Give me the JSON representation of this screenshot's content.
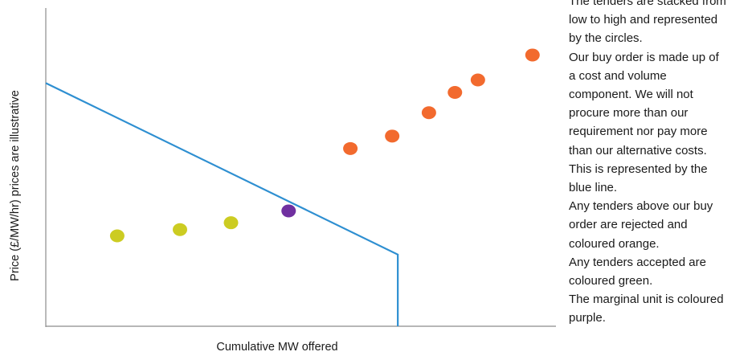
{
  "chart_data": {
    "type": "scatter",
    "title": "",
    "xlabel": "Cumulative MW offered",
    "ylabel": "Price (£/MW/hr) prices are illustrative",
    "xlim": [
      0,
      100
    ],
    "ylim": [
      0,
      100
    ],
    "grid": false,
    "legend": "none",
    "buy_order_line": {
      "color": "#2e8fd1",
      "points": [
        [
          0,
          78
        ],
        [
          69,
          23
        ],
        [
          69,
          0
        ]
      ]
    },
    "series": [
      {
        "color": "#cccc22",
        "category": "accepted",
        "points": [
          [
            14,
            29
          ],
          [
            26.3,
            31
          ],
          [
            36.3,
            33.2
          ]
        ]
      },
      {
        "color": "#7030a0",
        "category": "marginal",
        "points": [
          [
            47.6,
            37
          ]
        ]
      },
      {
        "color": "#f26a2e",
        "category": "rejected",
        "points": [
          [
            59.7,
            57
          ],
          [
            67.9,
            61
          ],
          [
            75.1,
            68.5
          ],
          [
            80.2,
            75
          ],
          [
            84.7,
            79
          ],
          [
            95.4,
            87
          ]
        ]
      }
    ]
  },
  "notes": [
    "The tenders are stacked from",
    "low to high and represented",
    "by the circles.",
    "Our buy order is made up of",
    "a cost and volume",
    "component. We will not",
    "procure more than our",
    "requirement nor pay more",
    "than our alternative costs.",
    "This is represented by the",
    "blue line.",
    "Any tenders above our buy",
    "order are rejected and",
    "coloured orange.",
    "Any tenders accepted are",
    "coloured green.",
    "The marginal unit is coloured",
    "purple."
  ]
}
